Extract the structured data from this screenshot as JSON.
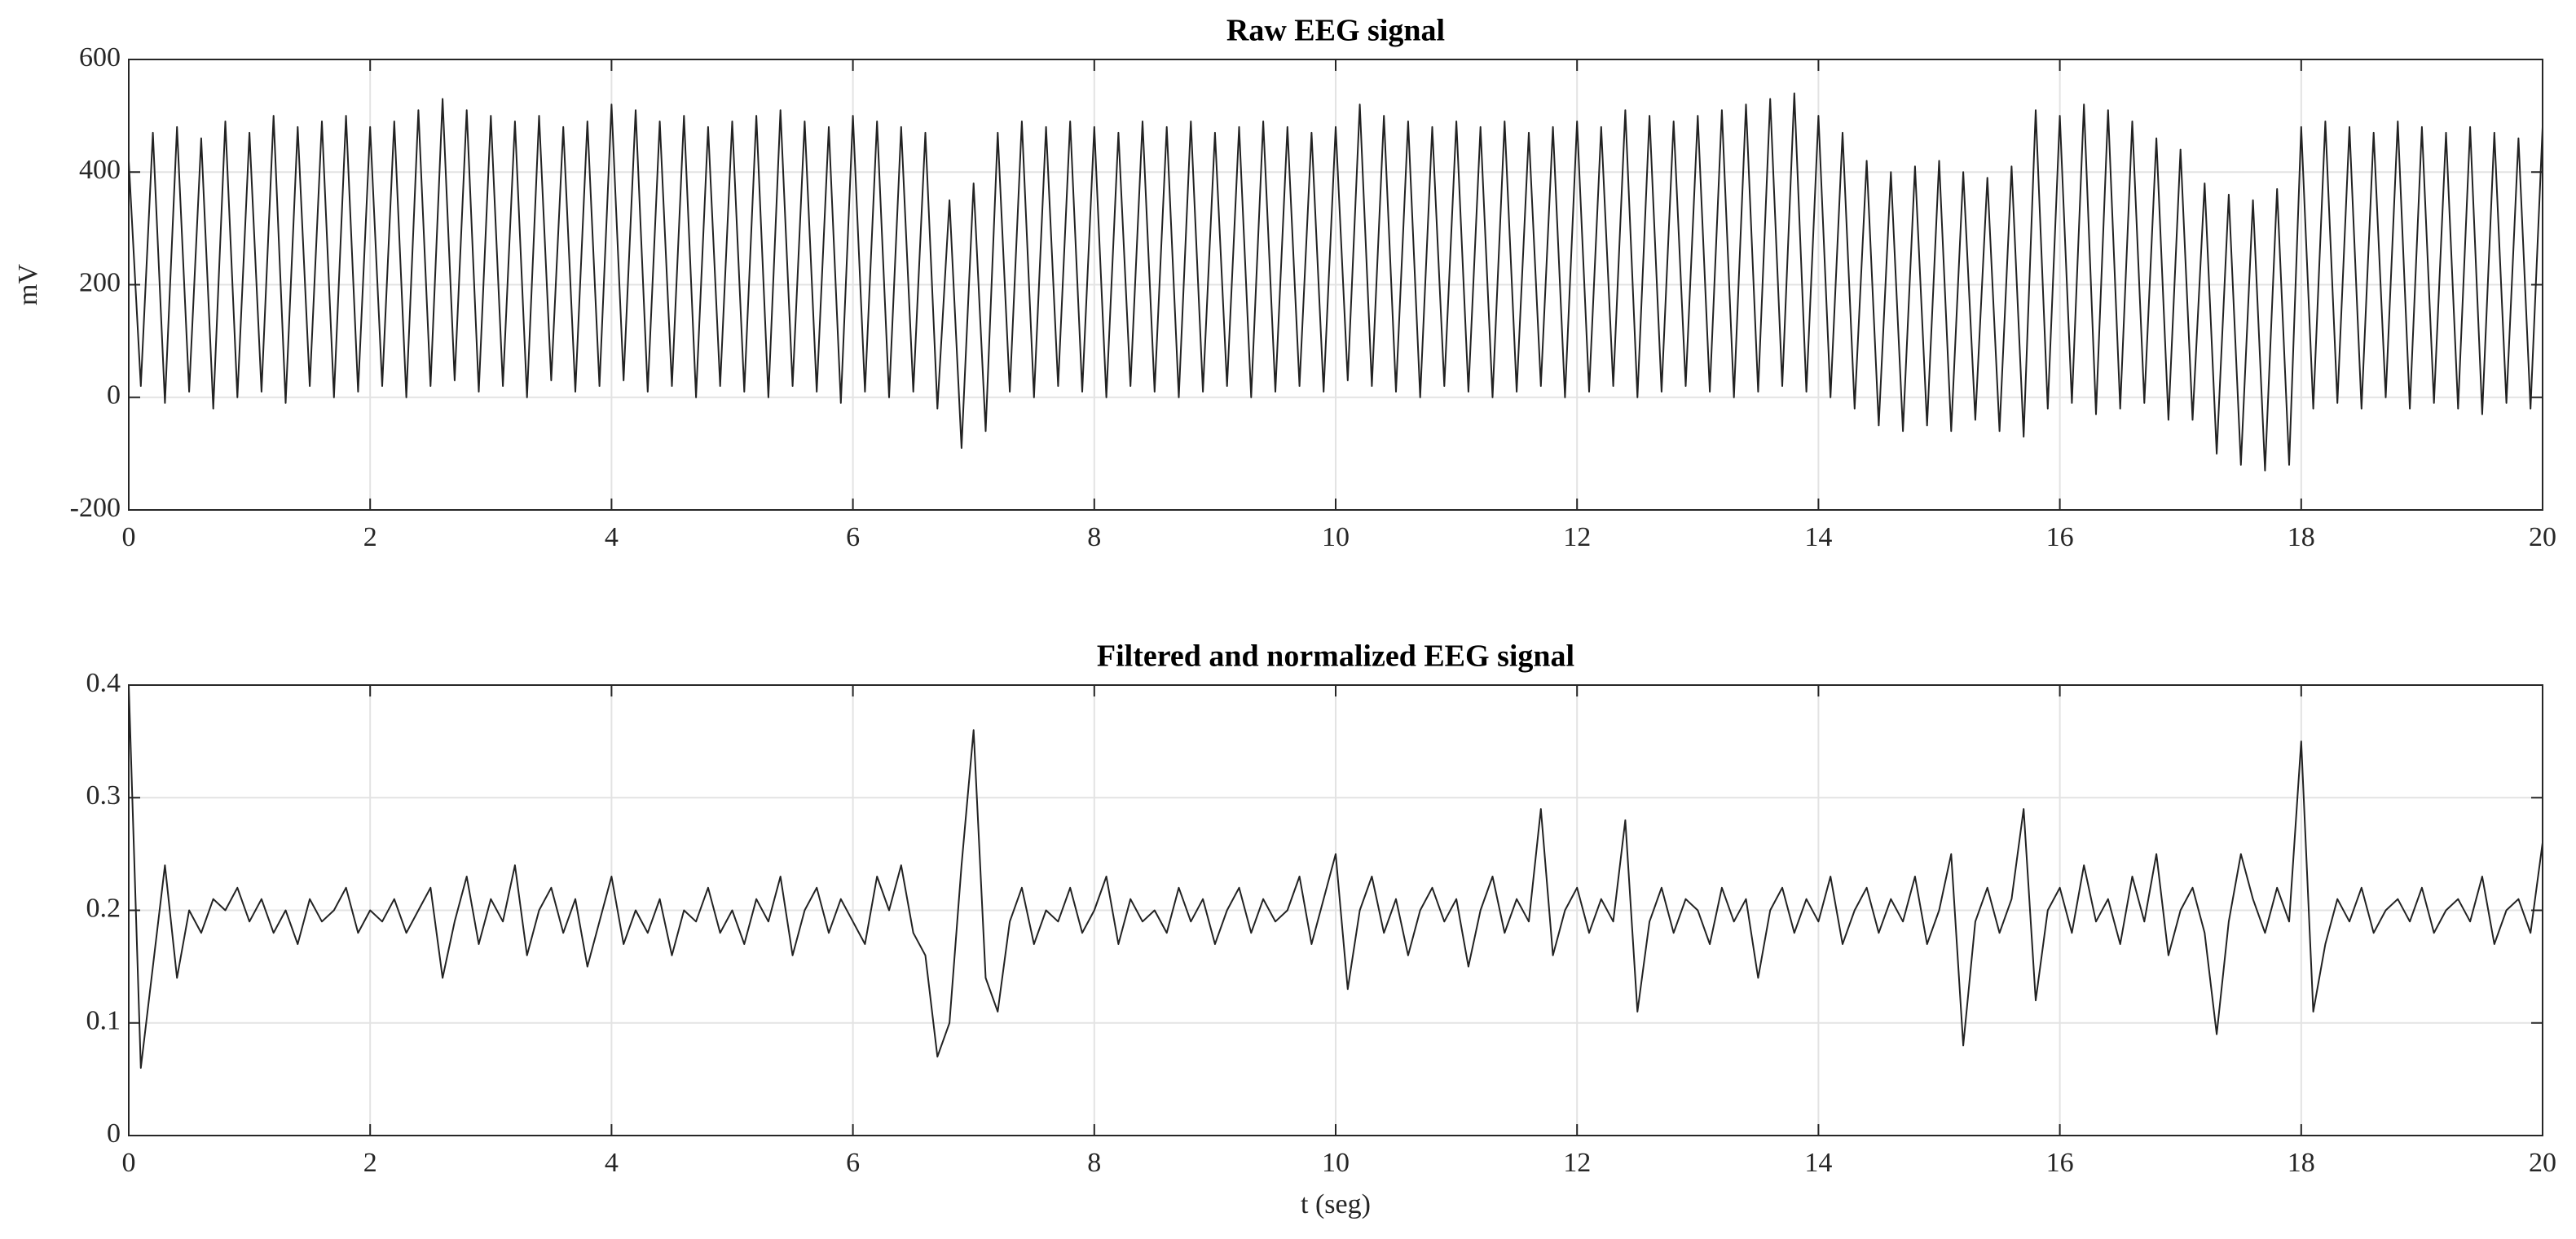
{
  "chart_data": [
    {
      "type": "line",
      "title": "Raw EEG signal",
      "ylabel": "mV",
      "x": [
        0,
        0.1,
        0.2,
        0.3,
        0.4,
        0.5,
        0.6,
        0.7,
        0.8,
        0.9,
        1,
        1.1,
        1.2,
        1.3,
        1.4,
        1.5,
        1.6,
        1.7,
        1.8,
        1.9,
        2,
        2.1,
        2.2,
        2.3,
        2.4,
        2.5,
        2.6,
        2.7,
        2.8,
        2.9,
        3,
        3.1,
        3.2,
        3.3,
        3.4,
        3.5,
        3.6,
        3.7,
        3.8,
        3.9,
        4,
        4.1,
        4.2,
        4.3,
        4.4,
        4.5,
        4.6,
        4.7,
        4.8,
        4.9,
        5,
        5.1,
        5.2,
        5.3,
        5.4,
        5.5,
        5.6,
        5.7,
        5.8,
        5.9,
        6,
        6.1,
        6.2,
        6.3,
        6.4,
        6.5,
        6.6,
        6.7,
        6.8,
        6.9,
        7,
        7.1,
        7.2,
        7.3,
        7.4,
        7.5,
        7.6,
        7.7,
        7.8,
        7.9,
        8,
        8.1,
        8.2,
        8.3,
        8.4,
        8.5,
        8.6,
        8.7,
        8.8,
        8.9,
        9,
        9.1,
        9.2,
        9.3,
        9.4,
        9.5,
        9.6,
        9.7,
        9.8,
        9.9,
        10,
        10.1,
        10.2,
        10.3,
        10.4,
        10.5,
        10.6,
        10.7,
        10.8,
        10.9,
        11,
        11.1,
        11.2,
        11.3,
        11.4,
        11.5,
        11.6,
        11.7,
        11.8,
        11.9,
        12,
        12.1,
        12.2,
        12.3,
        12.4,
        12.5,
        12.6,
        12.7,
        12.8,
        12.9,
        13,
        13.1,
        13.2,
        13.3,
        13.4,
        13.5,
        13.6,
        13.7,
        13.8,
        13.9,
        14,
        14.1,
        14.2,
        14.3,
        14.4,
        14.5,
        14.6,
        14.7,
        14.8,
        14.9,
        15,
        15.1,
        15.2,
        15.3,
        15.4,
        15.5,
        15.6,
        15.7,
        15.8,
        15.9,
        16,
        16.1,
        16.2,
        16.3,
        16.4,
        16.5,
        16.6,
        16.7,
        16.8,
        16.9,
        17,
        17.1,
        17.2,
        17.3,
        17.4,
        17.5,
        17.6,
        17.7,
        17.8,
        17.9,
        18,
        18.1,
        18.2,
        18.3,
        18.4,
        18.5,
        18.6,
        18.7,
        18.8,
        18.9,
        19,
        19.1,
        19.2,
        19.3,
        19.4,
        19.5,
        19.6,
        19.7,
        19.8,
        19.9,
        20
      ],
      "series": [
        {
          "color": "#222222",
          "values": [
            420,
            20,
            470,
            -10,
            480,
            10,
            460,
            -20,
            490,
            0,
            470,
            10,
            500,
            -10,
            480,
            20,
            490,
            0,
            500,
            10,
            480,
            20,
            490,
            0,
            510,
            20,
            530,
            30,
            510,
            10,
            500,
            20,
            490,
            0,
            500,
            30,
            480,
            10,
            490,
            20,
            520,
            30,
            510,
            10,
            490,
            20,
            500,
            0,
            480,
            20,
            490,
            10,
            500,
            0,
            510,
            20,
            490,
            10,
            480,
            -10,
            500,
            10,
            490,
            0,
            480,
            10,
            470,
            -20,
            350,
            -90,
            380,
            -60,
            470,
            10,
            490,
            0,
            480,
            20,
            490,
            10,
            480,
            0,
            470,
            20,
            490,
            10,
            480,
            0,
            490,
            10,
            470,
            20,
            480,
            0,
            490,
            10,
            480,
            20,
            470,
            10,
            480,
            30,
            520,
            20,
            500,
            10,
            490,
            0,
            480,
            20,
            490,
            10,
            480,
            0,
            490,
            10,
            470,
            20,
            480,
            0,
            490,
            10,
            480,
            20,
            510,
            0,
            500,
            10,
            490,
            20,
            500,
            10,
            510,
            0,
            520,
            10,
            530,
            20,
            540,
            10,
            500,
            0,
            470,
            -20,
            420,
            -50,
            400,
            -60,
            410,
            -50,
            420,
            -60,
            400,
            -40,
            390,
            -60,
            410,
            -70,
            510,
            -20,
            500,
            -10,
            520,
            -30,
            510,
            -20,
            490,
            -10,
            460,
            -40,
            440,
            -40,
            380,
            -100,
            360,
            -120,
            350,
            -130,
            370,
            -120,
            480,
            -20,
            490,
            -10,
            480,
            -20,
            470,
            0,
            490,
            -20,
            480,
            -10,
            470,
            -20,
            480,
            -30,
            470,
            -10,
            460,
            -20,
            480
          ]
        }
      ],
      "xlim": [
        0,
        20
      ],
      "ylim": [
        -200,
        600
      ],
      "xticks": [
        0,
        2,
        4,
        6,
        8,
        10,
        12,
        14,
        16,
        18,
        20
      ],
      "yticks": [
        -200,
        0,
        200,
        400,
        600
      ],
      "grid": true
    },
    {
      "type": "line",
      "title": "Filtered and normalized EEG signal",
      "xlabel": "t (seg)",
      "x": [
        0,
        0.1,
        0.2,
        0.3,
        0.4,
        0.5,
        0.6,
        0.7,
        0.8,
        0.9,
        1,
        1.1,
        1.2,
        1.3,
        1.4,
        1.5,
        1.6,
        1.7,
        1.8,
        1.9,
        2,
        2.1,
        2.2,
        2.3,
        2.4,
        2.5,
        2.6,
        2.7,
        2.8,
        2.9,
        3,
        3.1,
        3.2,
        3.3,
        3.4,
        3.5,
        3.6,
        3.7,
        3.8,
        3.9,
        4,
        4.1,
        4.2,
        4.3,
        4.4,
        4.5,
        4.6,
        4.7,
        4.8,
        4.9,
        5,
        5.1,
        5.2,
        5.3,
        5.4,
        5.5,
        5.6,
        5.7,
        5.8,
        5.9,
        6,
        6.1,
        6.2,
        6.3,
        6.4,
        6.5,
        6.6,
        6.7,
        6.8,
        6.9,
        7,
        7.1,
        7.2,
        7.3,
        7.4,
        7.5,
        7.6,
        7.7,
        7.8,
        7.9,
        8,
        8.1,
        8.2,
        8.3,
        8.4,
        8.5,
        8.6,
        8.7,
        8.8,
        8.9,
        9,
        9.1,
        9.2,
        9.3,
        9.4,
        9.5,
        9.6,
        9.7,
        9.8,
        9.9,
        10,
        10.1,
        10.2,
        10.3,
        10.4,
        10.5,
        10.6,
        10.7,
        10.8,
        10.9,
        11,
        11.1,
        11.2,
        11.3,
        11.4,
        11.5,
        11.6,
        11.7,
        11.8,
        11.9,
        12,
        12.1,
        12.2,
        12.3,
        12.4,
        12.5,
        12.6,
        12.7,
        12.8,
        12.9,
        13,
        13.1,
        13.2,
        13.3,
        13.4,
        13.5,
        13.6,
        13.7,
        13.8,
        13.9,
        14,
        14.1,
        14.2,
        14.3,
        14.4,
        14.5,
        14.6,
        14.7,
        14.8,
        14.9,
        15,
        15.1,
        15.2,
        15.3,
        15.4,
        15.5,
        15.6,
        15.7,
        15.8,
        15.9,
        16,
        16.1,
        16.2,
        16.3,
        16.4,
        16.5,
        16.6,
        16.7,
        16.8,
        16.9,
        17,
        17.1,
        17.2,
        17.3,
        17.4,
        17.5,
        17.6,
        17.7,
        17.8,
        17.9,
        18,
        18.1,
        18.2,
        18.3,
        18.4,
        18.5,
        18.6,
        18.7,
        18.8,
        18.9,
        19,
        19.1,
        19.2,
        19.3,
        19.4,
        19.5,
        19.6,
        19.7,
        19.8,
        19.9,
        20
      ],
      "series": [
        {
          "color": "#222222",
          "values": [
            0.4,
            0.06,
            0.15,
            0.24,
            0.14,
            0.2,
            0.18,
            0.21,
            0.2,
            0.22,
            0.19,
            0.21,
            0.18,
            0.2,
            0.17,
            0.21,
            0.19,
            0.2,
            0.22,
            0.18,
            0.2,
            0.19,
            0.21,
            0.18,
            0.2,
            0.22,
            0.14,
            0.19,
            0.23,
            0.17,
            0.21,
            0.19,
            0.24,
            0.16,
            0.2,
            0.22,
            0.18,
            0.21,
            0.15,
            0.19,
            0.23,
            0.17,
            0.2,
            0.18,
            0.21,
            0.16,
            0.2,
            0.19,
            0.22,
            0.18,
            0.2,
            0.17,
            0.21,
            0.19,
            0.23,
            0.16,
            0.2,
            0.22,
            0.18,
            0.21,
            0.19,
            0.17,
            0.23,
            0.2,
            0.24,
            0.18,
            0.16,
            0.07,
            0.1,
            0.24,
            0.36,
            0.14,
            0.11,
            0.19,
            0.22,
            0.17,
            0.2,
            0.19,
            0.22,
            0.18,
            0.2,
            0.23,
            0.17,
            0.21,
            0.19,
            0.2,
            0.18,
            0.22,
            0.19,
            0.21,
            0.17,
            0.2,
            0.22,
            0.18,
            0.21,
            0.19,
            0.2,
            0.23,
            0.17,
            0.21,
            0.25,
            0.13,
            0.2,
            0.23,
            0.18,
            0.21,
            0.16,
            0.2,
            0.22,
            0.19,
            0.21,
            0.15,
            0.2,
            0.23,
            0.18,
            0.21,
            0.19,
            0.29,
            0.16,
            0.2,
            0.22,
            0.18,
            0.21,
            0.19,
            0.28,
            0.11,
            0.19,
            0.22,
            0.18,
            0.21,
            0.2,
            0.17,
            0.22,
            0.19,
            0.21,
            0.14,
            0.2,
            0.22,
            0.18,
            0.21,
            0.19,
            0.23,
            0.17,
            0.2,
            0.22,
            0.18,
            0.21,
            0.19,
            0.23,
            0.17,
            0.2,
            0.25,
            0.08,
            0.19,
            0.22,
            0.18,
            0.21,
            0.29,
            0.12,
            0.2,
            0.22,
            0.18,
            0.24,
            0.19,
            0.21,
            0.17,
            0.23,
            0.19,
            0.25,
            0.16,
            0.2,
            0.22,
            0.18,
            0.09,
            0.19,
            0.25,
            0.21,
            0.18,
            0.22,
            0.19,
            0.35,
            0.11,
            0.17,
            0.21,
            0.19,
            0.22,
            0.18,
            0.2,
            0.21,
            0.19,
            0.22,
            0.18,
            0.2,
            0.21,
            0.19,
            0.23,
            0.17,
            0.2,
            0.21,
            0.18,
            0.26
          ]
        }
      ],
      "xlim": [
        0,
        20
      ],
      "ylim": [
        0,
        0.4
      ],
      "xticks": [
        0,
        2,
        4,
        6,
        8,
        10,
        12,
        14,
        16,
        18,
        20
      ],
      "yticks": [
        0,
        0.1,
        0.2,
        0.3,
        0.4
      ],
      "grid": true
    }
  ]
}
